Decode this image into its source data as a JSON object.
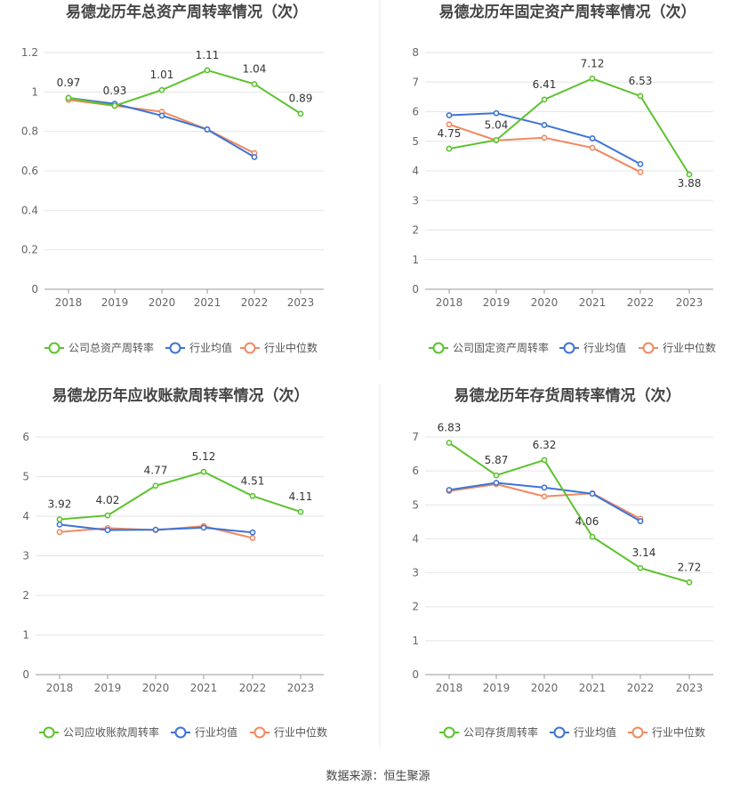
{
  "source": "数据来源：恒生聚源",
  "legend_labels": [
    "行业均值",
    "行业中位数"
  ],
  "colors": {
    "company": "#5dc22f",
    "mean": "#3e74d6",
    "median": "#f08a62",
    "grid": "#e6e6e6",
    "axis": "#999999"
  },
  "chart_data": [
    {
      "type": "line",
      "title": "易德龙历年总资产周转率情况（次）",
      "categories": [
        "2018",
        "2019",
        "2020",
        "2021",
        "2022",
        "2023"
      ],
      "ylim": [
        0,
        1.2
      ],
      "yticks": [
        "0",
        "0.2",
        "0.4",
        "0.6",
        "0.8",
        "1",
        "1.2"
      ],
      "series": [
        {
          "name": "公司总资产周转率",
          "values": [
            0.97,
            0.93,
            1.01,
            1.11,
            1.04,
            0.89
          ],
          "labels": [
            "0.97",
            "0.93",
            "1.01",
            "1.11",
            "1.04",
            "0.89"
          ]
        },
        {
          "name": "行业均值",
          "values": [
            0.97,
            0.94,
            0.88,
            0.81,
            0.67,
            null
          ]
        },
        {
          "name": "行业中位数",
          "values": [
            0.96,
            0.93,
            0.9,
            0.81,
            0.69,
            null
          ]
        }
      ]
    },
    {
      "type": "line",
      "title": "易德龙历年固定资产周转率情况（次）",
      "categories": [
        "2018",
        "2019",
        "2020",
        "2021",
        "2022",
        "2023"
      ],
      "ylim": [
        0,
        8
      ],
      "yticks": [
        "0",
        "1",
        "2",
        "3",
        "4",
        "5",
        "6",
        "7",
        "8"
      ],
      "series": [
        {
          "name": "公司固定资产周转率",
          "values": [
            4.75,
            5.04,
            6.41,
            7.12,
            6.53,
            3.88
          ],
          "labels": [
            "4.75",
            "5.04",
            "6.41",
            "7.12",
            "6.53",
            "3.88"
          ]
        },
        {
          "name": "行业均值",
          "values": [
            5.88,
            5.95,
            5.55,
            5.1,
            4.23,
            null
          ]
        },
        {
          "name": "行业中位数",
          "values": [
            5.57,
            5.03,
            5.12,
            4.78,
            3.96,
            null
          ]
        }
      ]
    },
    {
      "type": "line",
      "title": "易德龙历年应收账款周转率情况（次）",
      "categories": [
        "2018",
        "2019",
        "2020",
        "2021",
        "2022",
        "2023"
      ],
      "ylim": [
        0,
        6
      ],
      "yticks": [
        "0",
        "1",
        "2",
        "3",
        "4",
        "5",
        "6"
      ],
      "series": [
        {
          "name": "公司应收账款周转率",
          "values": [
            3.92,
            4.02,
            4.77,
            5.12,
            4.51,
            4.11
          ],
          "labels": [
            "3.92",
            "4.02",
            "4.77",
            "5.12",
            "4.51",
            "4.11"
          ]
        },
        {
          "name": "行业均值",
          "values": [
            3.79,
            3.65,
            3.66,
            3.71,
            3.59,
            null
          ]
        },
        {
          "name": "行业中位数",
          "values": [
            3.6,
            3.7,
            3.65,
            3.75,
            3.45,
            null
          ]
        }
      ]
    },
    {
      "type": "line",
      "title": "易德龙历年存货周转率情况（次）",
      "categories": [
        "2018",
        "2019",
        "2020",
        "2021",
        "2022",
        "2023"
      ],
      "ylim": [
        0,
        7
      ],
      "yticks": [
        "0",
        "1",
        "2",
        "3",
        "4",
        "5",
        "6",
        "7"
      ],
      "series": [
        {
          "name": "公司存货周转率",
          "values": [
            6.83,
            5.87,
            6.32,
            4.06,
            3.14,
            2.72
          ],
          "labels": [
            "6.83",
            "5.87",
            "6.32",
            "4.06",
            "3.14",
            "2.72"
          ]
        },
        {
          "name": "行业均值",
          "values": [
            5.44,
            5.65,
            5.51,
            5.33,
            4.52,
            null
          ]
        },
        {
          "name": "行业中位数",
          "values": [
            5.41,
            5.61,
            5.25,
            5.34,
            4.59,
            null
          ]
        }
      ]
    }
  ]
}
